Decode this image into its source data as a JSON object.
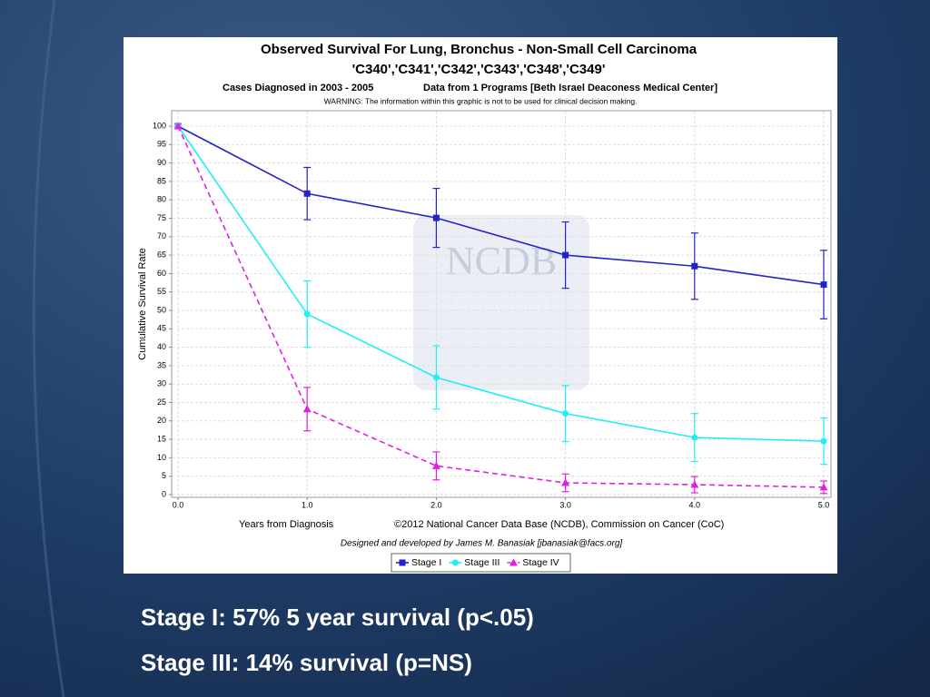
{
  "chart_data": {
    "type": "line",
    "title": "Observed Survival For Lung, Bronchus - Non-Small Cell Carcinoma",
    "subtitle": "'C340','C341','C342','C343','C348','C349'",
    "cases": "Cases Diagnosed in 2003 - 2005",
    "programs": "Data from 1 Programs [Beth Israel Deaconess Medical Center]",
    "warning": "WARNING: The information within this graphic is not to be used for clinical decision making.",
    "xlabel": "Years from Diagnosis",
    "ylabel": "Cumulative Survival Rate",
    "copyright": "©2012  National Cancer Data Base (NCDB), Commission on Cancer (CoC)",
    "credit": "Designed and developed by James M. Banasiak [jbanasiak@facs.org]",
    "watermark": [
      "NCDB",
      "Survival"
    ],
    "x": [
      0,
      1,
      2,
      3,
      4,
      5
    ],
    "xlim": [
      0,
      5
    ],
    "xticks": [
      {
        "value": 0,
        "label": "0.0"
      },
      {
        "value": 1,
        "label": "1.0"
      },
      {
        "value": 2,
        "label": "2.0"
      },
      {
        "value": 3,
        "label": "3.0"
      },
      {
        "value": 4,
        "label": "4.0"
      },
      {
        "value": 5,
        "label": "5.0"
      }
    ],
    "ylim": [
      0,
      100
    ],
    "yticks": [
      0,
      5,
      10,
      15,
      20,
      25,
      30,
      35,
      40,
      45,
      50,
      55,
      60,
      65,
      70,
      75,
      80,
      85,
      90,
      95,
      100
    ],
    "grid": true,
    "legend": "bottom",
    "series": [
      {
        "name": "Stage I",
        "color": "#2222c8",
        "marker": "square",
        "dashed": false,
        "values": [
          100,
          81.7,
          75.1,
          65,
          62,
          57
        ],
        "errors": [
          null,
          7.1,
          8,
          9,
          9,
          9.3
        ]
      },
      {
        "name": "Stage III",
        "color": "#22eef5",
        "marker": "circle",
        "dashed": false,
        "values": [
          100,
          49,
          31.8,
          22,
          15.5,
          14.5
        ],
        "errors": [
          null,
          9,
          8.6,
          7.6,
          6.5,
          6.3
        ]
      },
      {
        "name": "Stage IV",
        "color": "#e020e0",
        "marker": "triangle",
        "dashed": true,
        "values": [
          100,
          23.2,
          7.8,
          3.2,
          2.7,
          2
        ],
        "errors": [
          null,
          5.9,
          3.8,
          2.4,
          2.2,
          1.7
        ]
      }
    ]
  },
  "notes": [
    "Stage I: 57% 5 year survival (p<.05)",
    "Stage III: 14% survival (p=NS)"
  ]
}
